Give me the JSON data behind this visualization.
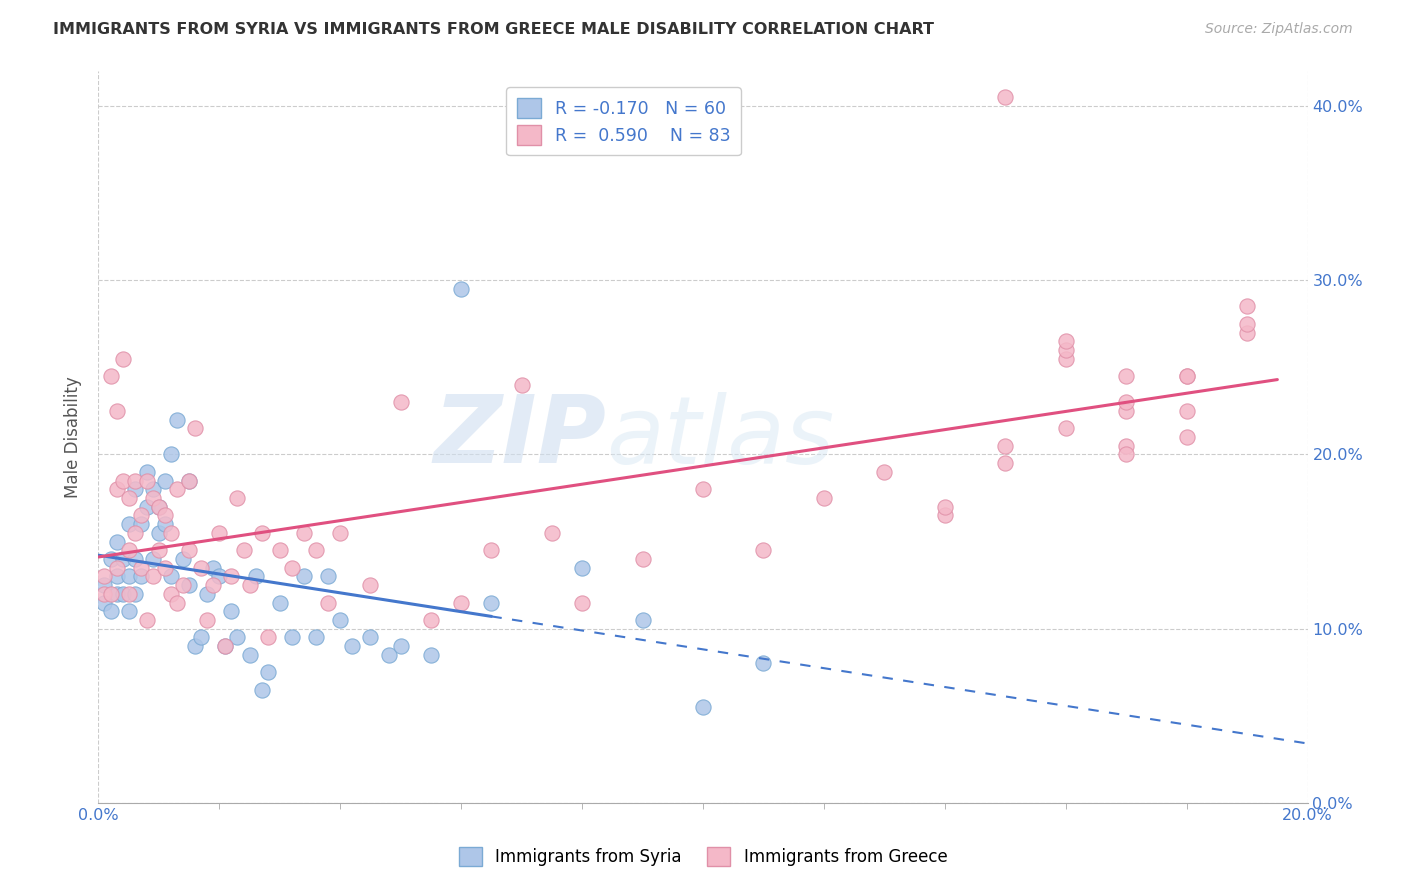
{
  "title": "IMMIGRANTS FROM SYRIA VS IMMIGRANTS FROM GREECE MALE DISABILITY CORRELATION CHART",
  "source": "Source: ZipAtlas.com",
  "ylabel": "Male Disability",
  "xlim": [
    0.0,
    0.2
  ],
  "ylim": [
    0.0,
    0.42
  ],
  "x_ticks_major": [
    0.0,
    0.2
  ],
  "x_ticks_minor": [
    0.02,
    0.04,
    0.06,
    0.08,
    0.1,
    0.12,
    0.14,
    0.16,
    0.18
  ],
  "y_ticks": [
    0.0,
    0.1,
    0.2,
    0.3,
    0.4
  ],
  "syria_color_fill": "#aec6e8",
  "syria_color_edge": "#7baad4",
  "greece_color_fill": "#f4b8c8",
  "greece_color_edge": "#e090a8",
  "syria_line_color": "#4477cc",
  "greece_line_color": "#e05080",
  "legend_R_syria": "-0.170",
  "legend_N_syria": "60",
  "legend_R_greece": "0.590",
  "legend_N_greece": "83",
  "watermark": "ZIPatlas",
  "syria_R": -0.17,
  "greece_R": 0.59,
  "syria_x": [
    0.001,
    0.001,
    0.002,
    0.002,
    0.003,
    0.003,
    0.003,
    0.004,
    0.004,
    0.005,
    0.005,
    0.005,
    0.006,
    0.006,
    0.006,
    0.007,
    0.007,
    0.008,
    0.008,
    0.009,
    0.009,
    0.01,
    0.01,
    0.011,
    0.011,
    0.012,
    0.012,
    0.013,
    0.014,
    0.015,
    0.015,
    0.016,
    0.017,
    0.018,
    0.019,
    0.02,
    0.021,
    0.022,
    0.023,
    0.025,
    0.026,
    0.027,
    0.028,
    0.03,
    0.032,
    0.034,
    0.036,
    0.038,
    0.04,
    0.042,
    0.045,
    0.048,
    0.05,
    0.055,
    0.06,
    0.065,
    0.08,
    0.09,
    0.1,
    0.11
  ],
  "syria_y": [
    0.125,
    0.115,
    0.14,
    0.11,
    0.13,
    0.15,
    0.12,
    0.14,
    0.12,
    0.16,
    0.13,
    0.11,
    0.18,
    0.14,
    0.12,
    0.16,
    0.13,
    0.19,
    0.17,
    0.18,
    0.14,
    0.155,
    0.17,
    0.16,
    0.185,
    0.13,
    0.2,
    0.22,
    0.14,
    0.185,
    0.125,
    0.09,
    0.095,
    0.12,
    0.135,
    0.13,
    0.09,
    0.11,
    0.095,
    0.085,
    0.13,
    0.065,
    0.075,
    0.115,
    0.095,
    0.13,
    0.095,
    0.13,
    0.105,
    0.09,
    0.095,
    0.085,
    0.09,
    0.085,
    0.295,
    0.115,
    0.135,
    0.105,
    0.055,
    0.08
  ],
  "greece_x": [
    0.001,
    0.001,
    0.002,
    0.002,
    0.003,
    0.003,
    0.003,
    0.004,
    0.004,
    0.005,
    0.005,
    0.005,
    0.006,
    0.006,
    0.007,
    0.007,
    0.008,
    0.008,
    0.009,
    0.009,
    0.01,
    0.01,
    0.011,
    0.011,
    0.012,
    0.012,
    0.013,
    0.013,
    0.014,
    0.015,
    0.015,
    0.016,
    0.017,
    0.018,
    0.019,
    0.02,
    0.021,
    0.022,
    0.023,
    0.024,
    0.025,
    0.027,
    0.028,
    0.03,
    0.032,
    0.034,
    0.036,
    0.038,
    0.04,
    0.045,
    0.05,
    0.055,
    0.06,
    0.065,
    0.07,
    0.075,
    0.08,
    0.09,
    0.1,
    0.11,
    0.12,
    0.13,
    0.14,
    0.15,
    0.16,
    0.17,
    0.18,
    0.19,
    0.17,
    0.18,
    0.19,
    0.18,
    0.19,
    0.18,
    0.17,
    0.16,
    0.15,
    0.14,
    0.16,
    0.17,
    0.15,
    0.16,
    0.17
  ],
  "greece_y": [
    0.13,
    0.12,
    0.245,
    0.12,
    0.225,
    0.18,
    0.135,
    0.185,
    0.255,
    0.145,
    0.175,
    0.12,
    0.185,
    0.155,
    0.135,
    0.165,
    0.105,
    0.185,
    0.13,
    0.175,
    0.145,
    0.17,
    0.135,
    0.165,
    0.155,
    0.12,
    0.18,
    0.115,
    0.125,
    0.185,
    0.145,
    0.215,
    0.135,
    0.105,
    0.125,
    0.155,
    0.09,
    0.13,
    0.175,
    0.145,
    0.125,
    0.155,
    0.095,
    0.145,
    0.135,
    0.155,
    0.145,
    0.115,
    0.155,
    0.125,
    0.23,
    0.105,
    0.115,
    0.145,
    0.24,
    0.155,
    0.115,
    0.14,
    0.18,
    0.145,
    0.175,
    0.19,
    0.165,
    0.195,
    0.215,
    0.205,
    0.245,
    0.285,
    0.2,
    0.225,
    0.27,
    0.21,
    0.275,
    0.245,
    0.225,
    0.255,
    0.205,
    0.17,
    0.26,
    0.23,
    0.405,
    0.265,
    0.245
  ]
}
